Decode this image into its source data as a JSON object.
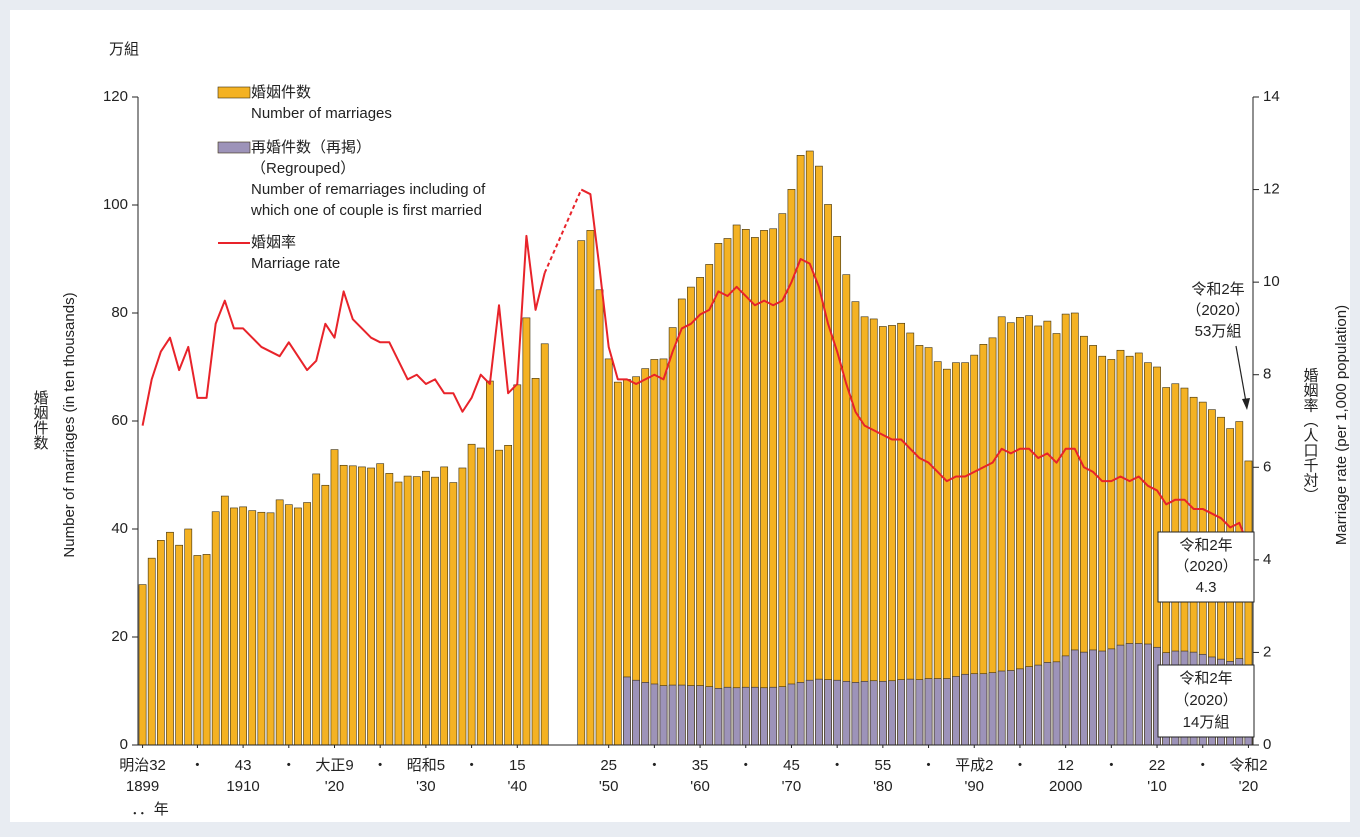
{
  "chart_data": {
    "type": "bar",
    "unit_label": "万組",
    "y_label_ja": "婚姻件数",
    "y_label": "Number of marriages (in ten thousands)",
    "y2_label_ja": "婚姻率（人口千対）",
    "y2_label": "Marriage rate (per 1,000 population)",
    "x_unit": "．．年",
    "x": [
      1899,
      1900,
      1901,
      1902,
      1903,
      1904,
      1905,
      1906,
      1907,
      1908,
      1909,
      1910,
      1911,
      1912,
      1913,
      1914,
      1915,
      1916,
      1917,
      1918,
      1919,
      1920,
      1921,
      1922,
      1923,
      1924,
      1925,
      1926,
      1927,
      1928,
      1929,
      1930,
      1931,
      1932,
      1933,
      1934,
      1935,
      1936,
      1937,
      1938,
      1939,
      1940,
      1941,
      1942,
      1943,
      1944,
      1945,
      1946,
      1947,
      1948,
      1949,
      1950,
      1951,
      1952,
      1953,
      1954,
      1955,
      1956,
      1957,
      1958,
      1959,
      1960,
      1961,
      1962,
      1963,
      1964,
      1965,
      1966,
      1967,
      1968,
      1969,
      1970,
      1971,
      1972,
      1973,
      1974,
      1975,
      1976,
      1977,
      1978,
      1979,
      1980,
      1981,
      1982,
      1983,
      1984,
      1985,
      1986,
      1987,
      1988,
      1989,
      1990,
      1991,
      1992,
      1993,
      1994,
      1995,
      1996,
      1997,
      1998,
      1999,
      2000,
      2001,
      2002,
      2003,
      2004,
      2005,
      2006,
      2007,
      2008,
      2009,
      2010,
      2011,
      2012,
      2013,
      2014,
      2015,
      2016,
      2017,
      2018,
      2019,
      2020
    ],
    "xlim": [
      1898.5,
      2020.5
    ],
    "xticks": [
      {
        "value": 1899,
        "label": "明治32",
        "sublabel": "1899"
      },
      {
        "value": 1905,
        "label": "・"
      },
      {
        "value": 1910,
        "label": "43",
        "sublabel": "1910"
      },
      {
        "value": 1915,
        "label": "・"
      },
      {
        "value": 1920,
        "label": "大正9",
        "sublabel": "'20"
      },
      {
        "value": 1925,
        "label": "・"
      },
      {
        "value": 1930,
        "label": "昭和5",
        "sublabel": "'30"
      },
      {
        "value": 1935,
        "label": "・"
      },
      {
        "value": 1940,
        "label": "15",
        "sublabel": "'40"
      },
      {
        "value": 1950,
        "label": "25",
        "sublabel": "'50"
      },
      {
        "value": 1955,
        "label": "・"
      },
      {
        "value": 1960,
        "label": "35",
        "sublabel": "'60"
      },
      {
        "value": 1965,
        "label": "・"
      },
      {
        "value": 1970,
        "label": "45",
        "sublabel": "'70"
      },
      {
        "value": 1975,
        "label": "・"
      },
      {
        "value": 1980,
        "label": "55",
        "sublabel": "'80"
      },
      {
        "value": 1985,
        "label": "・"
      },
      {
        "value": 1990,
        "label": "平成2",
        "sublabel": "'90"
      },
      {
        "value": 1995,
        "label": "・"
      },
      {
        "value": 2000,
        "label": "12",
        "sublabel": "2000"
      },
      {
        "value": 2005,
        "label": "・"
      },
      {
        "value": 2010,
        "label": "22",
        "sublabel": "'10"
      },
      {
        "value": 2015,
        "label": "・"
      },
      {
        "value": 2020,
        "label": "令和2",
        "sublabel": "'20"
      }
    ],
    "ylim": [
      0,
      120
    ],
    "yticks": [
      0,
      20,
      40,
      60,
      80,
      100,
      120
    ],
    "y2lim": [
      0,
      14
    ],
    "y2ticks": [
      0,
      2,
      4,
      6,
      8,
      10,
      12,
      14
    ],
    "series": [
      {
        "name": "婚姻件数",
        "legend_lines": [
          "Number of marriages"
        ],
        "type": "bar",
        "color": "#f4b223",
        "values": [
          29.7,
          34.6,
          37.9,
          39.4,
          37.0,
          40.0,
          35.1,
          35.3,
          43.2,
          46.1,
          43.9,
          44.1,
          43.4,
          43.1,
          43.0,
          45.4,
          44.5,
          43.9,
          44.9,
          50.2,
          48.1,
          54.7,
          51.8,
          51.7,
          51.5,
          51.3,
          52.1,
          50.3,
          48.7,
          49.8,
          49.7,
          50.7,
          49.6,
          51.5,
          48.6,
          51.3,
          55.7,
          55.0,
          67.4,
          54.6,
          55.5,
          66.7,
          79.1,
          67.9,
          74.3,
          null,
          null,
          null,
          93.4,
          95.3,
          84.3,
          71.5,
          67.2,
          67.7,
          68.2,
          69.7,
          71.4,
          71.5,
          77.3,
          82.6,
          84.8,
          86.6,
          89.0,
          92.9,
          93.8,
          96.3,
          95.5,
          94.0,
          95.3,
          95.6,
          98.4,
          102.9,
          109.2,
          110.0,
          107.2,
          100.1,
          94.2,
          87.1,
          82.1,
          79.3,
          78.9,
          77.5,
          77.7,
          78.1,
          76.3,
          74.0,
          73.6,
          71.0,
          69.6,
          70.8,
          70.8,
          72.2,
          74.2,
          75.4,
          79.3,
          78.2,
          79.2,
          79.5,
          77.6,
          78.5,
          76.2,
          79.8,
          80.0,
          75.7,
          74.0,
          72.0,
          71.4,
          73.1,
          72.0,
          72.6,
          70.8,
          70.0,
          66.2,
          66.9,
          66.1,
          64.4,
          63.5,
          62.1,
          60.7,
          58.6,
          59.9,
          52.6
        ]
      },
      {
        "name": "再婚件数（再掲）",
        "legend_lines": [
          "（Regrouped）",
          "Number of remarriages including of",
          "which one of couple is first married"
        ],
        "type": "bar",
        "color": "#9d93b9",
        "values": [
          null,
          null,
          null,
          null,
          null,
          null,
          null,
          null,
          null,
          null,
          null,
          null,
          null,
          null,
          null,
          null,
          null,
          null,
          null,
          null,
          null,
          null,
          null,
          null,
          null,
          null,
          null,
          null,
          null,
          null,
          null,
          null,
          null,
          null,
          null,
          null,
          null,
          null,
          null,
          null,
          null,
          null,
          null,
          null,
          null,
          null,
          null,
          null,
          null,
          null,
          null,
          null,
          null,
          12.6,
          12.0,
          11.6,
          11.3,
          11.0,
          11.1,
          11.1,
          11.0,
          11.0,
          10.8,
          10.5,
          10.7,
          10.6,
          10.7,
          10.7,
          10.6,
          10.7,
          10.8,
          11.3,
          11.6,
          12.0,
          12.2,
          12.1,
          12.0,
          11.8,
          11.6,
          11.8,
          11.9,
          11.8,
          11.9,
          12.1,
          12.2,
          12.1,
          12.3,
          12.3,
          12.3,
          12.7,
          13.1,
          13.2,
          13.2,
          13.4,
          13.7,
          13.8,
          14.1,
          14.5,
          14.8,
          15.3,
          15.4,
          16.5,
          17.6,
          17.2,
          17.6,
          17.4,
          17.8,
          18.5,
          18.8,
          18.8,
          18.7,
          18.1,
          17.1,
          17.4,
          17.4,
          17.2,
          16.8,
          16.3,
          15.9,
          15.5,
          16.0,
          14.0
        ]
      },
      {
        "name": "婚姻率",
        "legend_lines": [
          "Marriage rate"
        ],
        "type": "line",
        "axis": "y2",
        "color": "#e8232a",
        "gap_style": "dotted",
        "values": [
          6.9,
          7.9,
          8.5,
          8.8,
          8.1,
          8.6,
          7.5,
          7.5,
          9.1,
          9.6,
          9.0,
          9.0,
          8.8,
          8.6,
          8.5,
          8.4,
          8.7,
          8.4,
          8.1,
          8.3,
          9.1,
          8.8,
          9.8,
          9.2,
          9.0,
          8.8,
          8.7,
          8.7,
          8.3,
          7.9,
          8.0,
          7.8,
          7.9,
          7.6,
          7.6,
          7.2,
          7.5,
          8.0,
          7.8,
          9.5,
          7.6,
          7.8,
          11.0,
          9.4,
          10.2,
          null,
          null,
          null,
          12.0,
          11.9,
          10.3,
          8.6,
          7.9,
          7.9,
          7.8,
          7.9,
          8.0,
          7.9,
          8.5,
          9.0,
          9.1,
          9.3,
          9.4,
          9.8,
          9.7,
          9.9,
          9.7,
          9.5,
          9.6,
          9.5,
          9.6,
          10.0,
          10.5,
          10.4,
          9.9,
          9.1,
          8.5,
          7.8,
          7.2,
          6.9,
          6.8,
          6.7,
          6.6,
          6.6,
          6.4,
          6.2,
          6.1,
          5.9,
          5.7,
          5.8,
          5.8,
          5.9,
          6.0,
          6.1,
          6.4,
          6.3,
          6.4,
          6.4,
          6.2,
          6.3,
          6.1,
          6.4,
          6.4,
          6.0,
          5.9,
          5.7,
          5.7,
          5.8,
          5.7,
          5.8,
          5.6,
          5.5,
          5.2,
          5.3,
          5.3,
          5.1,
          5.1,
          5.0,
          4.9,
          4.7,
          4.8,
          4.3
        ]
      }
    ],
    "annotations": [
      {
        "lines": [
          "令和2年",
          "（2020）",
          "53万組"
        ]
      },
      {
        "lines": [
          "令和2年",
          "（2020）"
        ]
      },
      {
        "lines": [
          "令和2年",
          "（2020）",
          "14万組"
        ]
      }
    ]
  }
}
